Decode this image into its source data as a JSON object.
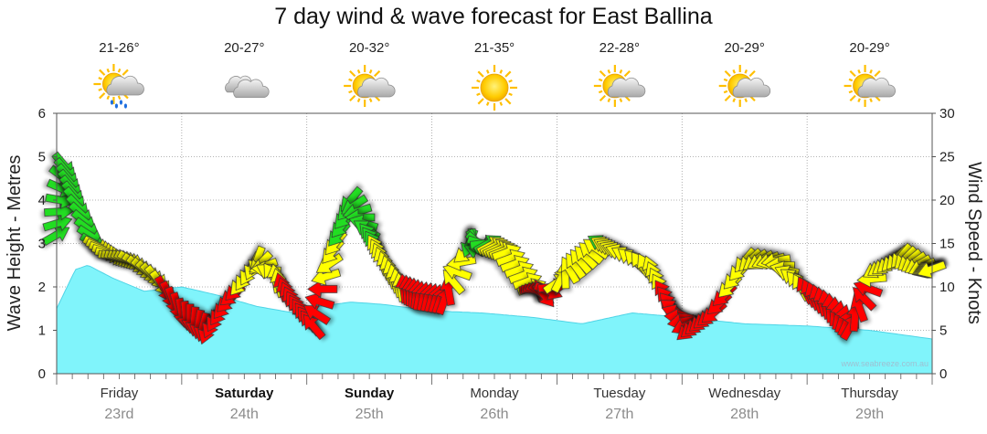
{
  "chart_data": {
    "type": "area",
    "title": "7 day wind & wave forecast for East Ballina",
    "left_axis": {
      "label": "Wave Height - Metres",
      "min": 0,
      "max": 6,
      "ticks": [
        "0",
        "1",
        "2",
        "3",
        "4",
        "5",
        "6"
      ]
    },
    "right_axis": {
      "label": "Wind Speed - Knots",
      "min": 0,
      "max": 30,
      "ticks": [
        "0",
        "5",
        "10",
        "15",
        "20",
        "25",
        "30"
      ]
    },
    "days": [
      {
        "name": "Friday",
        "date": "23rd",
        "bold": false,
        "temp": "21-26°",
        "weather": "storm-icon"
      },
      {
        "name": "Saturday",
        "date": "24th",
        "bold": true,
        "temp": "20-27°",
        "weather": "cloud-icon"
      },
      {
        "name": "Sunday",
        "date": "25th",
        "bold": true,
        "temp": "20-32°",
        "weather": "partly-cloudy-icon"
      },
      {
        "name": "Monday",
        "date": "26th",
        "bold": false,
        "temp": "21-35°",
        "weather": "sun-icon"
      },
      {
        "name": "Tuesday",
        "date": "27th",
        "bold": false,
        "temp": "22-28°",
        "weather": "partly-cloudy-icon"
      },
      {
        "name": "Wednesday",
        "date": "28th",
        "bold": false,
        "temp": "20-29°",
        "weather": "partly-cloudy-icon"
      },
      {
        "name": "Thursday",
        "date": "29th",
        "bold": false,
        "temp": "20-29°",
        "weather": "partly-cloudy-icon"
      }
    ],
    "wave_series": {
      "name": "Wave Height",
      "units": "m",
      "t": [
        0,
        0.15,
        0.25,
        0.45,
        0.7,
        1.0,
        1.3,
        1.6,
        1.9,
        2.1,
        2.35,
        2.6,
        3.0,
        3.4,
        3.8,
        4.2,
        4.6,
        5.0,
        5.5,
        6.0,
        6.5,
        7.0
      ],
      "values": [
        1.5,
        2.4,
        2.5,
        2.2,
        1.9,
        2.0,
        1.8,
        1.55,
        1.4,
        1.55,
        1.65,
        1.6,
        1.45,
        1.4,
        1.3,
        1.15,
        1.4,
        1.3,
        1.15,
        1.1,
        1.0,
        0.8
      ]
    },
    "wind_series": {
      "name": "Wind Speed",
      "units": "knots",
      "t": [
        0,
        0.06,
        0.15,
        0.3,
        0.45,
        0.6,
        0.8,
        1.0,
        1.2,
        1.4,
        1.6,
        1.75,
        1.9,
        2.05,
        2.2,
        2.35,
        2.5,
        2.6,
        2.75,
        2.9,
        3.1,
        3.3,
        3.45,
        3.6,
        3.8,
        3.9,
        4.1,
        4.35,
        4.5,
        4.75,
        4.9,
        5.05,
        5.25,
        5.5,
        5.75,
        5.95,
        6.15,
        6.35,
        6.55,
        6.75,
        6.95
      ],
      "speeds": [
        16,
        24,
        20,
        15,
        13.5,
        13,
        11,
        7,
        5,
        9,
        13,
        11,
        8,
        5.5,
        14,
        20,
        16,
        13,
        10,
        9,
        8.5,
        15,
        15,
        14,
        10,
        9,
        12,
        15,
        14,
        12,
        8,
        5,
        7,
        13,
        13,
        10,
        8,
        5.5,
        12,
        13.5,
        12
      ],
      "dirs": [
        60,
        140,
        140,
        120,
        100,
        120,
        140,
        170,
        200,
        230,
        200,
        350,
        330,
        320,
        220,
        220,
        320,
        340,
        350,
        10,
        20,
        200,
        60,
        70,
        70,
        140,
        330,
        300,
        290,
        340,
        320,
        230,
        230,
        220,
        260,
        330,
        350,
        30,
        240,
        220,
        250
      ]
    },
    "wind_color_thresholds": [
      {
        "max_knots": 10,
        "color": "#ff0000"
      },
      {
        "max_knots": 15,
        "color": "#ffff00"
      },
      {
        "max_knots": 30,
        "color": "#22dd22"
      }
    ],
    "watermark": "www.seabreeze.com.au",
    "colors": {
      "wave_fill": "#80f4fb",
      "wave_stroke": "#4fd4e6",
      "grid": "#9a9a9a"
    }
  }
}
